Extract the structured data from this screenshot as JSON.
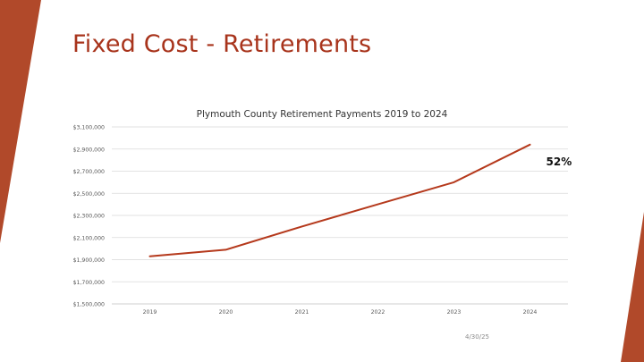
{
  "slide": {
    "title": "Fixed Cost - Retirements",
    "date": "4/30/25",
    "accent": "#b1492a",
    "title_color": "#a8341c"
  },
  "chart_data": {
    "type": "line",
    "title": "Plymouth County Retirement Payments 2019 to 2024",
    "xlabel": "",
    "ylabel": "",
    "categories": [
      "2019",
      "2020",
      "2021",
      "2022",
      "2023",
      "2024"
    ],
    "series": [
      {
        "values": [
          1930000,
          1990000,
          2200000,
          2400000,
          2600000,
          2940000
        ],
        "color": "#b5391c"
      }
    ],
    "ylim": [
      1500000,
      3100000
    ],
    "yticks": [
      1500000,
      1700000,
      1900000,
      2100000,
      2300000,
      2500000,
      2700000,
      2900000,
      3100000
    ],
    "ytick_labels": [
      "$1,500,000",
      "$1,700,000",
      "$1,900,000",
      "$2,100,000",
      "$2,300,000",
      "$2,500,000",
      "$2,700,000",
      "$2,900,000",
      "$3,100,000"
    ],
    "grid": true,
    "annotation": {
      "text": "52%",
      "category": "2024"
    }
  }
}
